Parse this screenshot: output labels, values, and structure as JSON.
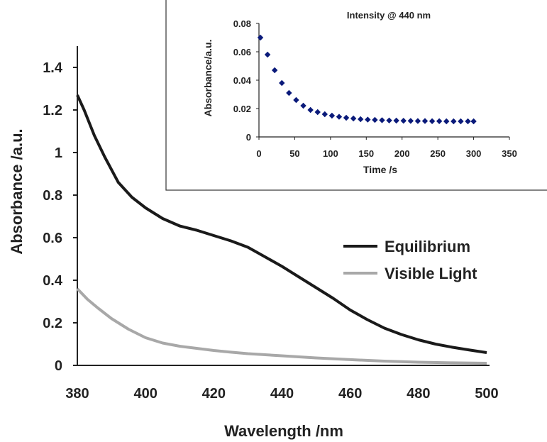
{
  "chart_data": [
    {
      "type": "line",
      "xlabel": "Wavelength /nm",
      "ylabel": "Absorbance /a.u.",
      "xlim": [
        380,
        500
      ],
      "ylim": [
        0,
        1.5
      ],
      "x_ticks": [
        "380",
        "400",
        "420",
        "440",
        "460",
        "480",
        "500"
      ],
      "y_ticks": [
        "0",
        "0.2",
        "0.4",
        "0.6",
        "0.8",
        "1",
        "1.2",
        "1.4"
      ],
      "legend_position": "center-right",
      "series": [
        {
          "name": "Equilibrium",
          "color": "#1a1a1a",
          "x": [
            380,
            382,
            385,
            388,
            392,
            396,
            400,
            405,
            410,
            415,
            420,
            425,
            430,
            435,
            440,
            445,
            450,
            455,
            460,
            465,
            470,
            475,
            480,
            485,
            490,
            495,
            500
          ],
          "y": [
            1.27,
            1.2,
            1.08,
            0.98,
            0.86,
            0.79,
            0.74,
            0.69,
            0.655,
            0.635,
            0.61,
            0.585,
            0.555,
            0.51,
            0.465,
            0.415,
            0.365,
            0.315,
            0.26,
            0.215,
            0.175,
            0.145,
            0.12,
            0.1,
            0.085,
            0.072,
            0.06
          ]
        },
        {
          "name": "Visible Light",
          "color": "#a8a8a8",
          "x": [
            380,
            383,
            386,
            390,
            395,
            400,
            405,
            410,
            415,
            420,
            425,
            430,
            440,
            450,
            460,
            470,
            480,
            490,
            500
          ],
          "y": [
            0.36,
            0.31,
            0.27,
            0.22,
            0.17,
            0.13,
            0.105,
            0.09,
            0.08,
            0.07,
            0.062,
            0.055,
            0.045,
            0.035,
            0.027,
            0.02,
            0.015,
            0.012,
            0.01
          ]
        }
      ]
    },
    {
      "type": "scatter",
      "title": "Intensity @ 440 nm",
      "xlabel": "Time /s",
      "ylabel": "Absorbance/a.u.",
      "xlim": [
        0,
        350
      ],
      "ylim": [
        0,
        0.08
      ],
      "x_ticks": [
        "0",
        "50",
        "100",
        "150",
        "200",
        "250",
        "300",
        "350"
      ],
      "y_ticks": [
        "0",
        "0.02",
        "0.04",
        "0.06",
        "0.08"
      ],
      "series": [
        {
          "color": "#0a1a7a",
          "marker": "diamond",
          "x": [
            2,
            12,
            22,
            32,
            42,
            52,
            62,
            72,
            82,
            92,
            102,
            112,
            122,
            132,
            142,
            152,
            162,
            172,
            182,
            192,
            202,
            212,
            222,
            232,
            242,
            252,
            262,
            272,
            282,
            292,
            300
          ],
          "y": [
            0.07,
            0.058,
            0.047,
            0.038,
            0.031,
            0.026,
            0.022,
            0.019,
            0.0175,
            0.016,
            0.015,
            0.0142,
            0.0135,
            0.013,
            0.0125,
            0.0122,
            0.012,
            0.0118,
            0.0116,
            0.0115,
            0.0114,
            0.0113,
            0.0112,
            0.0112,
            0.0111,
            0.0111,
            0.011,
            0.011,
            0.011,
            0.011,
            0.011
          ]
        }
      ]
    }
  ]
}
